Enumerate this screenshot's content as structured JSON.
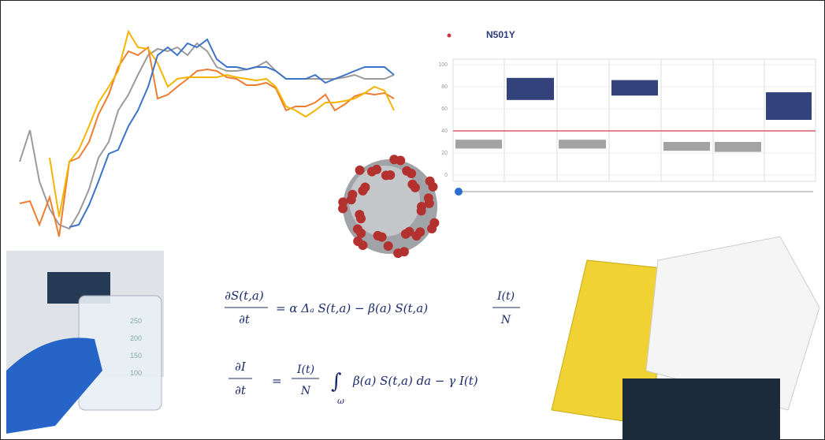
{
  "scatter": {
    "title": "N501Y",
    "yticks": [
      0,
      20,
      40,
      60,
      80,
      100
    ],
    "ylim": [
      0,
      100
    ],
    "threshold": 40,
    "threshold_color": "#e05a6a"
  },
  "equations": {
    "eq1": {
      "lhs_top": "∂S(t,a)",
      "lhs_bottom": "∂t",
      "rhs": "= α Δₐ S(t,a) − β(a) S(t,a)",
      "frac_top": "I(t)",
      "frac_bottom": "N"
    },
    "eq2": {
      "lhs_top": "∂I",
      "lhs_bottom": "∂t",
      "frac_top": "I(t)",
      "frac_bottom": "N",
      "integral": "∫",
      "domain": "ω",
      "rhs": "β(a) S(t,a) da − γ I(t)"
    }
  },
  "beaker": {
    "marks": [
      "250",
      "200",
      "150",
      "100"
    ]
  }
}
